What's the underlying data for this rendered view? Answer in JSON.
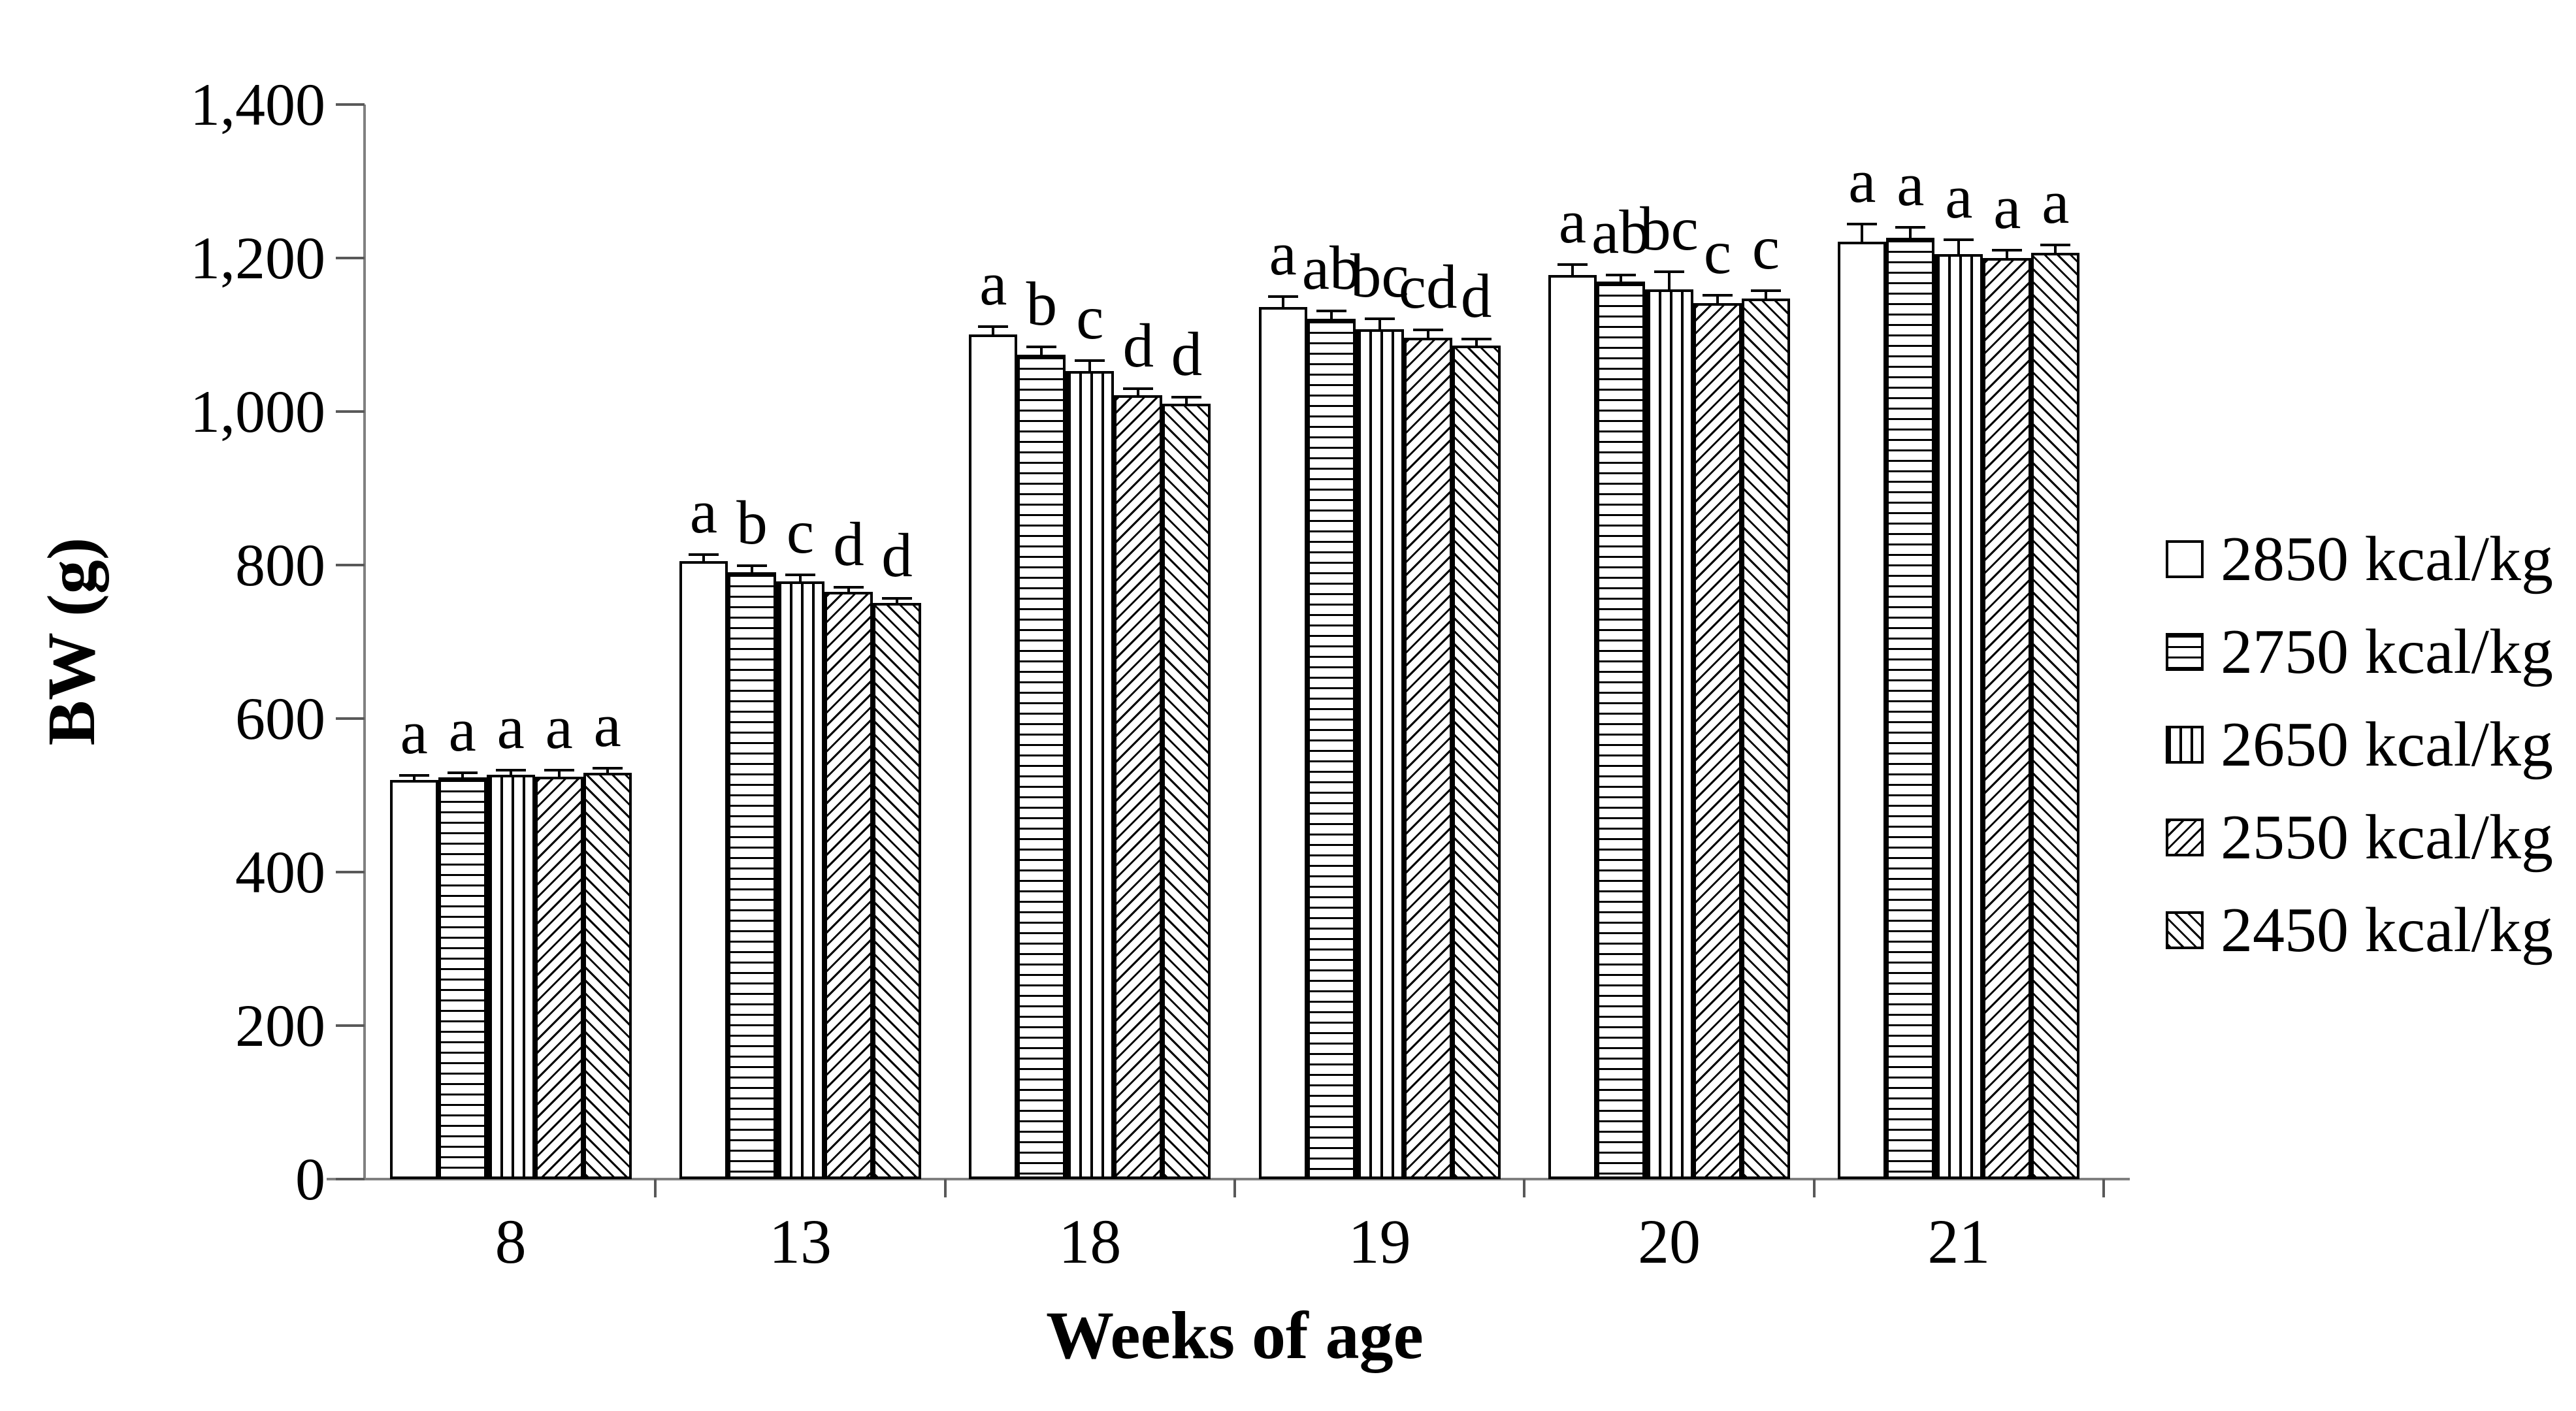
{
  "chart_data": {
    "type": "bar",
    "title": "",
    "xlabel": "Weeks of age",
    "ylabel": "BW (g)",
    "ylim": [
      0,
      1400
    ],
    "ytick_step": 200,
    "ytick_labels": [
      "0",
      "200",
      "400",
      "600",
      "800",
      "1,000",
      "1,200",
      "1,400"
    ],
    "categories": [
      "8",
      "13",
      "18",
      "19",
      "20",
      "21"
    ],
    "legend_position": "right",
    "grid": false,
    "series": [
      {
        "name": "2850 kcal/kg",
        "pattern": "solid",
        "values": [
          520,
          805,
          1100,
          1136,
          1178,
          1221
        ],
        "errors": [
          8,
          10,
          12,
          15,
          15,
          25
        ],
        "letters": [
          "a",
          "a",
          "a",
          "a",
          "a",
          "a"
        ]
      },
      {
        "name": "2750 kcal/kg",
        "pattern": "horizontal-lines",
        "values": [
          523,
          791,
          1074,
          1121,
          1169,
          1226
        ],
        "errors": [
          8,
          10,
          12,
          12,
          10,
          15
        ],
        "letters": [
          "a",
          "b",
          "b",
          "ab",
          "ab",
          "a"
        ]
      },
      {
        "name": "2650 kcal/kg",
        "pattern": "vertical-lines",
        "values": [
          527,
          779,
          1053,
          1107,
          1159,
          1205
        ],
        "errors": [
          8,
          10,
          15,
          15,
          25,
          20
        ],
        "letters": [
          "a",
          "c",
          "c",
          "bc",
          "bc",
          "a"
        ]
      },
      {
        "name": "2550 kcal/kg",
        "pattern": "diagonal-up",
        "values": [
          524,
          765,
          1021,
          1096,
          1141,
          1200
        ],
        "errors": [
          10,
          8,
          10,
          12,
          12,
          12
        ],
        "letters": [
          "a",
          "d",
          "d",
          "cd",
          "c",
          "a"
        ]
      },
      {
        "name": "2450 kcal/kg",
        "pattern": "diagonal-down",
        "values": [
          529,
          751,
          1010,
          1086,
          1147,
          1207
        ],
        "errors": [
          8,
          8,
          10,
          10,
          12,
          12
        ],
        "letters": [
          "a",
          "d",
          "d",
          "d",
          "c",
          "a"
        ]
      }
    ],
    "colors": {
      "bar_fill": "#ffffff",
      "bar_border": "#000000",
      "axis_line": "#808080",
      "tick": "#595959",
      "text": "#000000"
    }
  }
}
